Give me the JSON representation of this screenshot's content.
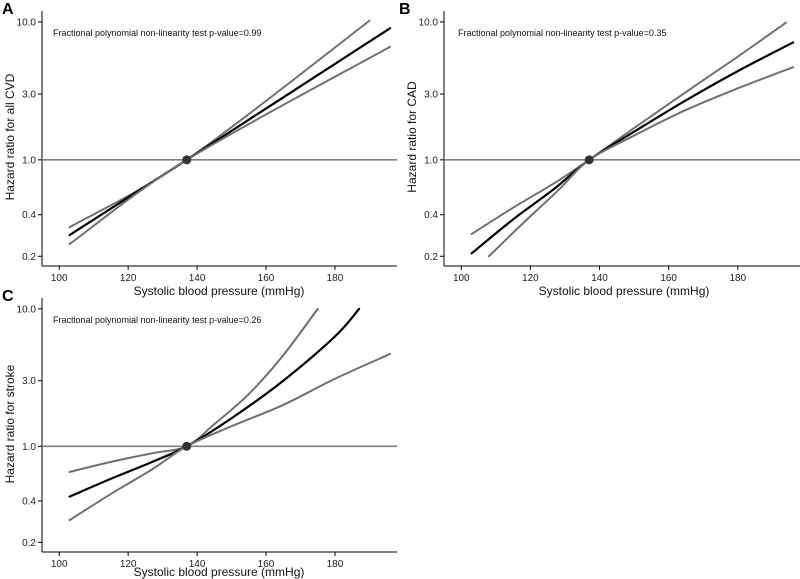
{
  "chart_data": [
    {
      "panel": "A",
      "type": "line",
      "title": "",
      "xlabel": "Systolic blood pressure (mmHg)",
      "ylabel": "Hazard ratio for all CVD",
      "yscale": "log",
      "xlim": [
        95,
        198
      ],
      "ylim": [
        0.17,
        12
      ],
      "xticks": [
        100,
        120,
        140,
        160,
        180
      ],
      "yticks": [
        0.2,
        0.4,
        1.0,
        3.0,
        10.0
      ],
      "ytick_labels": [
        "0.2",
        "0.4",
        "1.0",
        "3.0",
        "10.0"
      ],
      "annotation": "Fractional polynomial non-linearity test p-value=0.99",
      "reference_line": 1.0,
      "reference_point": {
        "x": 137,
        "y": 1.0
      },
      "series": [
        {
          "name": "upper CI",
          "color": "#707070",
          "x": [
            103,
            137,
            190
          ],
          "y": [
            0.325,
            1.0,
            10.2
          ]
        },
        {
          "name": "estimate",
          "color": "#000000",
          "x": [
            103,
            137,
            196
          ],
          "y": [
            0.285,
            1.0,
            9.0
          ]
        },
        {
          "name": "lower CI",
          "color": "#707070",
          "x": [
            103,
            137,
            196
          ],
          "y": [
            0.245,
            1.0,
            6.6
          ]
        }
      ]
    },
    {
      "panel": "B",
      "type": "line",
      "title": "",
      "xlabel": "Systolic blood pressure (mmHg)",
      "ylabel": "Hazard ratio for CAD",
      "yscale": "log",
      "xlim": [
        95,
        198
      ],
      "ylim": [
        0.17,
        12
      ],
      "xticks": [
        100,
        120,
        140,
        160,
        180
      ],
      "yticks": [
        0.2,
        0.4,
        1.0,
        3.0,
        10.0
      ],
      "ytick_labels": [
        "0.2",
        "0.4",
        "1.0",
        "3.0",
        "10.0"
      ],
      "annotation": "Fractional polynomial non-linearity test p-value=0.35",
      "reference_line": 1.0,
      "reference_point": {
        "x": 137,
        "y": 1.0
      },
      "series": [
        {
          "name": "upper CI",
          "color": "#707070",
          "x": [
            103,
            115,
            127,
            137,
            150,
            165,
            180,
            194
          ],
          "y": [
            0.29,
            0.45,
            0.68,
            1.0,
            1.7,
            3.1,
            5.6,
            9.9
          ]
        },
        {
          "name": "estimate",
          "color": "#000000",
          "x": [
            103,
            115,
            127,
            137,
            150,
            165,
            180,
            196
          ],
          "y": [
            0.21,
            0.37,
            0.62,
            1.0,
            1.6,
            2.7,
            4.4,
            7.1
          ]
        },
        {
          "name": "lower CI",
          "color": "#707070",
          "x": [
            108,
            118,
            128,
            137,
            150,
            165,
            180,
            196
          ],
          "y": [
            0.2,
            0.35,
            0.6,
            1.0,
            1.5,
            2.3,
            3.3,
            4.7
          ]
        }
      ]
    },
    {
      "panel": "C",
      "type": "line",
      "title": "",
      "xlabel": "Systolic blood pressure (mmHg)",
      "ylabel": "Hazard ratio for stroke",
      "yscale": "log",
      "xlim": [
        95,
        198
      ],
      "ylim": [
        0.17,
        12
      ],
      "xticks": [
        100,
        120,
        140,
        160,
        180
      ],
      "yticks": [
        0.2,
        0.4,
        1.0,
        3.0,
        10.0
      ],
      "ytick_labels": [
        "0.2",
        "0.4",
        "1.0",
        "3.0",
        "10.0"
      ],
      "annotation": "Fractional polynomial non-linearity test p-value=0.26",
      "reference_line": 1.0,
      "reference_point": {
        "x": 137,
        "y": 1.0
      },
      "series": [
        {
          "name": "upper CI",
          "color": "#707070",
          "x": [
            103,
            115,
            127,
            137,
            145,
            155,
            165,
            175
          ],
          "y": [
            0.65,
            0.77,
            0.89,
            1.0,
            1.45,
            2.4,
            4.6,
            10.0
          ]
        },
        {
          "name": "estimate",
          "color": "#000000",
          "x": [
            103,
            115,
            127,
            137,
            150,
            165,
            180,
            187
          ],
          "y": [
            0.43,
            0.58,
            0.77,
            1.0,
            1.6,
            3.0,
            6.3,
            10.0
          ]
        },
        {
          "name": "lower CI",
          "color": "#707070",
          "x": [
            103,
            115,
            127,
            137,
            150,
            165,
            180,
            196
          ],
          "y": [
            0.29,
            0.45,
            0.68,
            1.0,
            1.4,
            2.0,
            3.1,
            4.7
          ]
        }
      ]
    }
  ]
}
